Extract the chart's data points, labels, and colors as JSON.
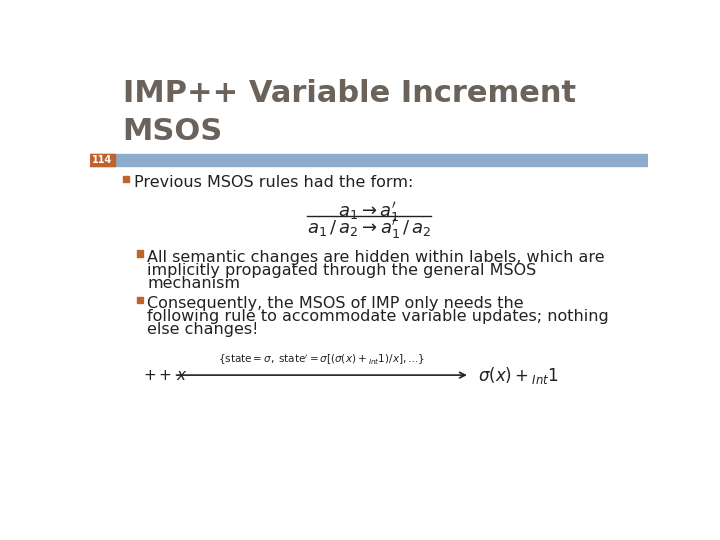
{
  "title_line1": "IMP++ Variable Increment",
  "title_line2": "MSOS",
  "slide_number": "114",
  "title_color": "#6b6259",
  "title_bg_color": "#8eaacc",
  "slide_num_bg_color": "#c0632a",
  "slide_num_text_color": "#ffffff",
  "bg_color": "#ffffff",
  "bullet_color": "#c0632a",
  "text_color": "#222222",
  "bullet1": "Previous MSOS rules had the form:",
  "bullet2_line1": "All semantic changes are hidden within labels, which are",
  "bullet2_line2": "implicitly propagated through the general MSOS",
  "bullet2_line3": "mechanism",
  "bullet3_line1": "Consequently, the MSOS of IMP only needs the",
  "bullet3_line2": "following rule to accommodate variable updates; nothing",
  "bullet3_line3": "else changes!",
  "title_fontsize": 22,
  "body_fontsize": 11.5,
  "formula_fontsize": 12
}
